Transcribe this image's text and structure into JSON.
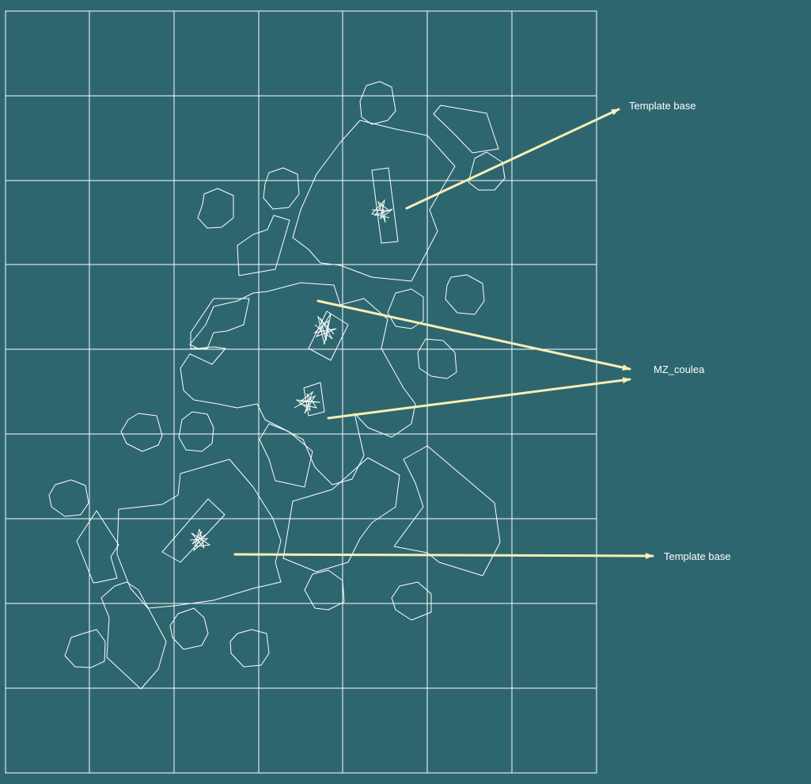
{
  "diagram": {
    "background_color": "#2e6670",
    "line_color": "#ffffff",
    "arrow_color": "#f7efb5",
    "labels": {
      "template_base_top": "Template base",
      "mz_coulea": "MZ_coulea",
      "template_base_bottom": "Template base"
    }
  }
}
